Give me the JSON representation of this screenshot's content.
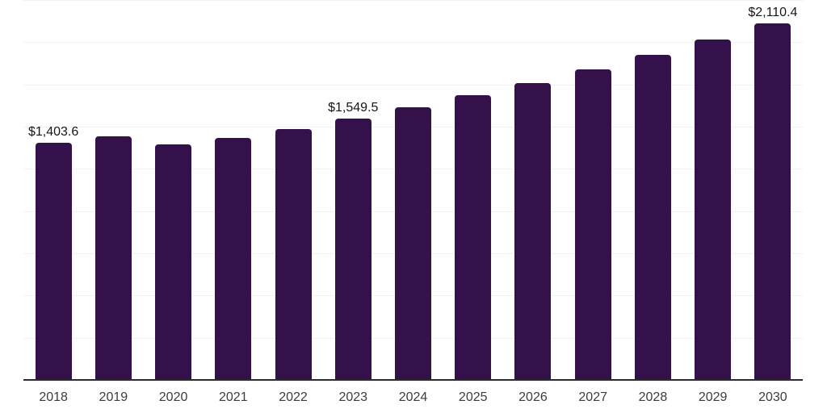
{
  "chart_data": {
    "type": "bar",
    "categories": [
      "2018",
      "2019",
      "2020",
      "2021",
      "2022",
      "2023",
      "2024",
      "2025",
      "2026",
      "2027",
      "2028",
      "2029",
      "2030"
    ],
    "values": [
      1403.6,
      1445,
      1397,
      1435,
      1487,
      1549.5,
      1617,
      1686,
      1760,
      1840,
      1923,
      2015,
      2110.4
    ],
    "value_labels": [
      "$1,403.6",
      null,
      null,
      null,
      null,
      "$1,549.5",
      null,
      null,
      null,
      null,
      null,
      null,
      "$2,110.4"
    ],
    "ylim": [
      0,
      2250
    ],
    "gridline_step": 250,
    "grid": "horizontal",
    "legend": "none",
    "colors": {
      "bar": "#35114B",
      "axis_line": "#2b2b2b",
      "gridline": "#f2f2f2",
      "value_label": "#161616",
      "tick_label": "#3c3c3c",
      "background": "#ffffff"
    }
  }
}
